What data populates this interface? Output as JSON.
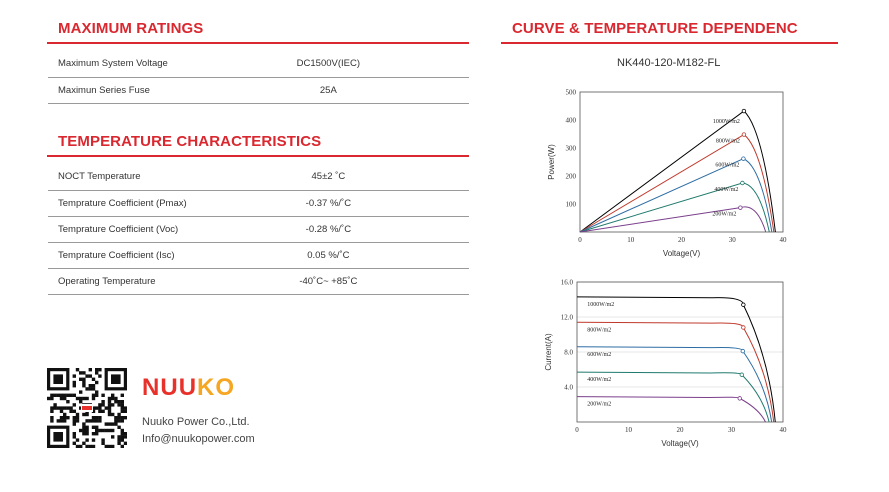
{
  "max_ratings": {
    "title": "MAXIMUM RATINGS",
    "rows": [
      {
        "label": "Maximum System Voltage",
        "value": "DC1500V(IEC)"
      },
      {
        "label": "Maximun Series Fuse",
        "value": "25A"
      }
    ]
  },
  "temp_char": {
    "title": "TEMPERATURE CHARACTERISTICS",
    "rows": [
      {
        "label": "NOCT Temperature",
        "value": "45±2 ˚C"
      },
      {
        "label": "Temprature Coefficient (Pmax)",
        "value": "-0.37 %/˚C"
      },
      {
        "label": "Temprature Coefficient (Voc)",
        "value": "-0.28 %/˚C"
      },
      {
        "label": "Temprature Coefficient (Isc)",
        "value": "0.05 %/˚C"
      },
      {
        "label": "Operating Temperature",
        "value": "-40˚C~ +85˚C"
      }
    ]
  },
  "curve": {
    "title": "CURVE & TEMPERATURE DEPENDENC",
    "model": "NK440-120-M182-FL"
  },
  "brand": {
    "logo_text": "NUUKO",
    "company": "Nuuko Power Co.,Ltd.",
    "email": "Info@nuukopower.com",
    "accent": "#d9282f",
    "logo_colors": [
      "#e8312a",
      "#f5a623"
    ]
  },
  "chart_data": [
    {
      "type": "line",
      "title": "",
      "xlabel": "Voltage(V)",
      "ylabel": "Power(W)",
      "xlim": [
        0,
        40
      ],
      "ylim": [
        0,
        500
      ],
      "x_ticks": [
        "0",
        "10",
        "20",
        "30",
        "40"
      ],
      "y_ticks": [
        "100",
        "200",
        "300",
        "400",
        "500"
      ],
      "grid": false,
      "series": [
        {
          "name": "1000W/m2",
          "color": "#000000",
          "points": [
            [
              0,
              0
            ],
            [
              32.3,
              432
            ],
            [
              36,
              330
            ],
            [
              38.5,
              0
            ]
          ]
        },
        {
          "name": "800W/m2",
          "color": "#c0392b",
          "points": [
            [
              0,
              0
            ],
            [
              32.3,
              348
            ],
            [
              35.8,
              260
            ],
            [
              38.2,
              0
            ]
          ]
        },
        {
          "name": "600W/m2",
          "color": "#2e6da4",
          "points": [
            [
              0,
              0
            ],
            [
              32.2,
              262
            ],
            [
              35.6,
              195
            ],
            [
              37.8,
              0
            ]
          ]
        },
        {
          "name": "400W/m2",
          "color": "#1f7a6d",
          "points": [
            [
              0,
              0
            ],
            [
              32.0,
              175
            ],
            [
              35.3,
              130
            ],
            [
              37.3,
              0
            ]
          ]
        },
        {
          "name": "200W/m2",
          "color": "#7b3f8c",
          "points": [
            [
              0,
              0
            ],
            [
              31.6,
              87
            ],
            [
              34.8,
              65
            ],
            [
              36.6,
              0
            ]
          ]
        }
      ]
    },
    {
      "type": "line",
      "title": "",
      "xlabel": "Voltage(V)",
      "ylabel": "Current(A)",
      "xlim": [
        0,
        40
      ],
      "ylim": [
        0,
        16
      ],
      "x_ticks": [
        "0",
        "10",
        "20",
        "30",
        "40"
      ],
      "y_ticks": [
        "4.0",
        "8.0",
        "12.0",
        "16.0"
      ],
      "grid": true,
      "series": [
        {
          "name": "1000W/m2",
          "color": "#000000",
          "isc": 14.3,
          "vmp": 32.3,
          "imp": 13.4,
          "voc": 38.5
        },
        {
          "name": "800W/m2",
          "color": "#c0392b",
          "isc": 11.4,
          "vmp": 32.3,
          "imp": 10.8,
          "voc": 38.2
        },
        {
          "name": "600W/m2",
          "color": "#2e6da4",
          "isc": 8.6,
          "vmp": 32.2,
          "imp": 8.1,
          "voc": 37.8
        },
        {
          "name": "400W/m2",
          "color": "#1f7a6d",
          "isc": 5.7,
          "vmp": 32.0,
          "imp": 5.4,
          "voc": 37.3
        },
        {
          "name": "200W/m2",
          "color": "#7b3f8c",
          "isc": 2.9,
          "vmp": 31.6,
          "imp": 2.7,
          "voc": 36.6
        }
      ]
    }
  ]
}
